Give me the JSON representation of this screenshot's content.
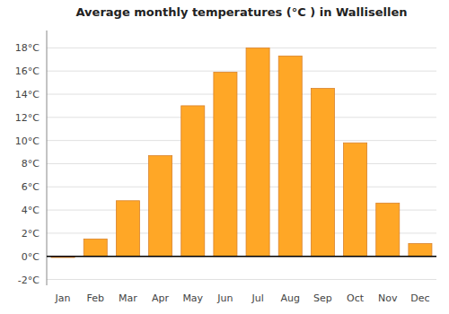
{
  "chart_data": {
    "type": "bar",
    "title": "Average monthly temperatures (°C ) in Wallisellen",
    "categories": [
      "Jan",
      "Feb",
      "Mar",
      "Apr",
      "May",
      "Jun",
      "Jul",
      "Aug",
      "Sep",
      "Oct",
      "Nov",
      "Dec"
    ],
    "values": [
      -0.1,
      1.5,
      4.8,
      8.7,
      13.0,
      15.9,
      18.0,
      17.3,
      14.5,
      9.8,
      4.6,
      1.1
    ],
    "color": "#FFA726",
    "ylim": [
      -2.5,
      19.5
    ],
    "yticks": [
      {
        "value": -2,
        "label": "-2°C"
      },
      {
        "value": 0,
        "label": "0°C"
      },
      {
        "value": 2,
        "label": "2°C"
      },
      {
        "value": 4,
        "label": "4°C"
      },
      {
        "value": 6,
        "label": "6°C"
      },
      {
        "value": 8,
        "label": "8°C"
      },
      {
        "value": 10,
        "label": "10°C"
      },
      {
        "value": 12,
        "label": "12°C"
      },
      {
        "value": 14,
        "label": "14°C"
      },
      {
        "value": 16,
        "label": "16°C"
      },
      {
        "value": 18,
        "label": "18°C"
      }
    ],
    "grid": true
  }
}
